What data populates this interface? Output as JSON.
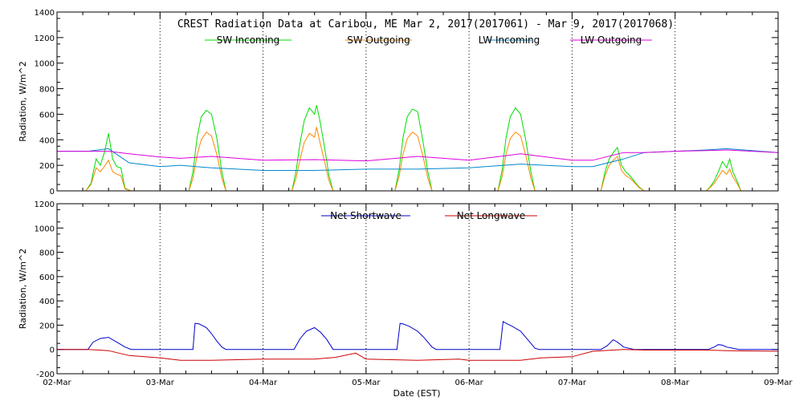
{
  "chart_data": [
    {
      "type": "line",
      "title": "CREST Radiation Data at Caribou, ME   Mar  2, 2017(2017061) - Mar  9, 2017(2017068)",
      "ylabel": "Radiation, W/m^2",
      "xlabel": "",
      "xlim": [
        0,
        7
      ],
      "ylim": [
        0,
        1400
      ],
      "yticks": [
        0,
        200,
        400,
        600,
        800,
        1000,
        1200,
        1400
      ],
      "x_tick_labels": [
        "02-Mar",
        "03-Mar",
        "04-Mar",
        "05-Mar",
        "06-Mar",
        "07-Mar",
        "08-Mar",
        "09-Mar"
      ],
      "grid": "vertical-dotted",
      "legend": "top-center",
      "x_unit": "days since 02-Mar 00:00 EST",
      "series": [
        {
          "name": "SW Incoming",
          "color": "#00dd00",
          "x": [
            0.0,
            0.28,
            0.33,
            0.38,
            0.42,
            0.46,
            0.5,
            0.54,
            0.58,
            0.62,
            0.66,
            0.72,
            1.0,
            1.28,
            1.32,
            1.36,
            1.4,
            1.45,
            1.5,
            1.55,
            1.6,
            1.64,
            1.68,
            1.72,
            2.0,
            2.28,
            2.32,
            2.36,
            2.4,
            2.45,
            2.5,
            2.52,
            2.55,
            2.6,
            2.64,
            2.68,
            2.72,
            3.0,
            3.28,
            3.32,
            3.36,
            3.4,
            3.45,
            3.5,
            3.55,
            3.6,
            3.64,
            3.68,
            3.72,
            4.0,
            4.28,
            4.32,
            4.36,
            4.4,
            4.45,
            4.5,
            4.55,
            4.6,
            4.64,
            4.68,
            4.72,
            5.0,
            5.28,
            5.32,
            5.36,
            5.4,
            5.44,
            5.48,
            5.52,
            5.56,
            5.6,
            5.65,
            5.7,
            6.0,
            6.3,
            6.34,
            6.38,
            6.42,
            6.46,
            6.5,
            6.53,
            6.56,
            6.6,
            6.64,
            6.7,
            7.0
          ],
          "y": [
            0,
            0,
            60,
            250,
            200,
            300,
            450,
            250,
            190,
            180,
            20,
            0,
            0,
            0,
            150,
            420,
            580,
            630,
            600,
            420,
            150,
            0,
            0,
            0,
            0,
            0,
            150,
            380,
            550,
            650,
            600,
            670,
            560,
            330,
            120,
            0,
            0,
            0,
            0,
            160,
            420,
            580,
            640,
            620,
            400,
            150,
            0,
            0,
            0,
            0,
            0,
            160,
            420,
            580,
            650,
            600,
            400,
            150,
            0,
            0,
            0,
            0,
            0,
            150,
            250,
            300,
            340,
            200,
            150,
            120,
            80,
            30,
            0,
            0,
            0,
            30,
            80,
            150,
            230,
            180,
            250,
            150,
            80,
            0,
            0,
            0
          ]
        },
        {
          "name": "SW Outgoing",
          "color": "#ff8800",
          "x": [
            0.0,
            0.28,
            0.33,
            0.38,
            0.42,
            0.46,
            0.5,
            0.54,
            0.58,
            0.62,
            0.66,
            0.72,
            1.0,
            1.28,
            1.32,
            1.36,
            1.4,
            1.45,
            1.5,
            1.55,
            1.6,
            1.64,
            1.68,
            1.72,
            2.0,
            2.28,
            2.32,
            2.36,
            2.4,
            2.45,
            2.5,
            2.52,
            2.55,
            2.6,
            2.64,
            2.68,
            2.72,
            3.0,
            3.28,
            3.32,
            3.36,
            3.4,
            3.45,
            3.5,
            3.55,
            3.6,
            3.64,
            3.68,
            3.72,
            4.0,
            4.28,
            4.32,
            4.36,
            4.4,
            4.45,
            4.5,
            4.55,
            4.6,
            4.64,
            4.68,
            4.72,
            5.0,
            5.28,
            5.32,
            5.36,
            5.4,
            5.44,
            5.48,
            5.52,
            5.56,
            5.6,
            5.65,
            5.7,
            6.0,
            6.3,
            6.34,
            6.38,
            6.42,
            6.46,
            6.5,
            6.53,
            6.56,
            6.6,
            6.64,
            6.7,
            7.0
          ],
          "y": [
            0,
            0,
            50,
            180,
            150,
            190,
            240,
            150,
            130,
            120,
            15,
            0,
            0,
            0,
            100,
            280,
            400,
            460,
            430,
            290,
            100,
            0,
            0,
            0,
            0,
            0,
            100,
            250,
            380,
            450,
            420,
            500,
            390,
            220,
            80,
            0,
            0,
            0,
            0,
            110,
            290,
            410,
            460,
            430,
            280,
            100,
            0,
            0,
            0,
            0,
            0,
            110,
            290,
            410,
            460,
            430,
            280,
            100,
            0,
            0,
            0,
            0,
            0,
            120,
            200,
            240,
            270,
            160,
            120,
            100,
            70,
            25,
            0,
            0,
            0,
            25,
            60,
            110,
            160,
            130,
            170,
            110,
            60,
            0,
            0,
            0
          ]
        },
        {
          "name": "LW Incoming",
          "color": "#0088cc",
          "x": [
            0.0,
            0.3,
            0.5,
            0.7,
            1.0,
            1.2,
            1.5,
            2.0,
            2.5,
            3.0,
            3.5,
            4.0,
            4.5,
            5.0,
            5.2,
            5.5,
            5.7,
            6.0,
            6.3,
            6.5,
            7.0
          ],
          "y": [
            310,
            310,
            330,
            220,
            190,
            200,
            180,
            160,
            160,
            170,
            170,
            180,
            210,
            190,
            190,
            250,
            300,
            310,
            320,
            330,
            300
          ]
        },
        {
          "name": "LW Outgoing",
          "color": "#dd00dd",
          "x": [
            0.0,
            0.3,
            0.5,
            0.7,
            1.0,
            1.2,
            1.5,
            2.0,
            2.5,
            3.0,
            3.5,
            4.0,
            4.5,
            5.0,
            5.2,
            5.5,
            5.7,
            6.0,
            6.3,
            6.5,
            7.0
          ],
          "y": [
            310,
            310,
            310,
            290,
            265,
            255,
            270,
            240,
            245,
            235,
            270,
            240,
            290,
            240,
            240,
            300,
            300,
            310,
            315,
            320,
            300
          ]
        }
      ]
    },
    {
      "type": "line",
      "title": "",
      "ylabel": "Radiation, W/m^2",
      "xlabel": "Date (EST)",
      "xlim": [
        0,
        7
      ],
      "ylim": [
        -200,
        1200
      ],
      "yticks": [
        -200,
        0,
        200,
        400,
        600,
        800,
        1000,
        1200
      ],
      "x_tick_labels": [
        "02-Mar",
        "03-Mar",
        "04-Mar",
        "05-Mar",
        "06-Mar",
        "07-Mar",
        "08-Mar",
        "09-Mar"
      ],
      "grid": "vertical-dotted",
      "legend": "top-center",
      "x_unit": "days since 02-Mar 00:00 EST",
      "series": [
        {
          "name": "Net Shortwave",
          "color": "#0000cc",
          "x": [
            0.0,
            0.3,
            0.35,
            0.42,
            0.5,
            0.58,
            0.66,
            0.72,
            1.0,
            1.32,
            1.34,
            1.38,
            1.45,
            1.5,
            1.55,
            1.6,
            1.64,
            1.68,
            2.0,
            2.3,
            2.36,
            2.42,
            2.5,
            2.56,
            2.62,
            2.68,
            3.0,
            3.3,
            3.33,
            3.36,
            3.42,
            3.5,
            3.56,
            3.6,
            3.64,
            3.68,
            4.0,
            4.3,
            4.33,
            4.36,
            4.42,
            4.5,
            4.56,
            4.6,
            4.64,
            4.68,
            5.0,
            5.28,
            5.34,
            5.4,
            5.44,
            5.5,
            5.6,
            5.7,
            6.0,
            6.32,
            6.38,
            6.42,
            6.46,
            6.5,
            6.56,
            6.62,
            7.0
          ],
          "y": [
            0,
            0,
            60,
            90,
            100,
            60,
            20,
            0,
            0,
            0,
            215,
            210,
            180,
            130,
            70,
            20,
            0,
            0,
            0,
            0,
            90,
            150,
            180,
            140,
            80,
            0,
            0,
            0,
            215,
            210,
            190,
            150,
            100,
            60,
            20,
            0,
            0,
            0,
            230,
            215,
            190,
            150,
            90,
            50,
            10,
            0,
            0,
            0,
            30,
            80,
            60,
            20,
            0,
            0,
            0,
            0,
            20,
            40,
            35,
            20,
            10,
            0,
            0
          ]
        },
        {
          "name": "Net Longwave",
          "color": "#cc0000",
          "x": [
            0.0,
            0.3,
            0.5,
            0.7,
            1.0,
            1.2,
            1.5,
            2.0,
            2.5,
            2.7,
            2.9,
            3.0,
            3.5,
            3.9,
            4.0,
            4.5,
            4.7,
            5.0,
            5.2,
            5.5,
            5.7,
            6.0,
            6.3,
            6.5,
            7.0
          ],
          "y": [
            0,
            0,
            -10,
            -50,
            -70,
            -90,
            -90,
            -80,
            -80,
            -65,
            -30,
            -80,
            -90,
            -80,
            -90,
            -90,
            -70,
            -60,
            -15,
            0,
            -5,
            -5,
            -5,
            -10,
            -15
          ]
        }
      ]
    }
  ]
}
